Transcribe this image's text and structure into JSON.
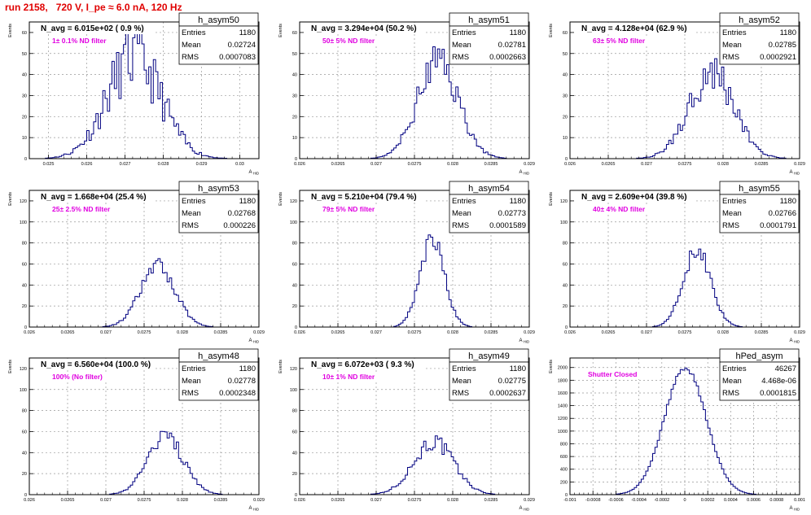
{
  "page_title": "run 2158,   720 V, I_pe ≈ 6.0 nA, 120 Hz",
  "chart_data": [
    {
      "type": "histogram",
      "name": "h_asym50",
      "nav": "N_avg = 6.015e+02 ( 0.9 %)",
      "filter": "1± 0.1% ND filter",
      "stats": [
        {
          "label": "Entries",
          "value": "1180"
        },
        {
          "label": "Mean",
          "value": "0.02724"
        },
        {
          "label": "RMS",
          "value": "0.0007083"
        }
      ],
      "ylabel": "Events",
      "xlabel": "A_HID",
      "xlim": [
        0.0245,
        0.0305
      ],
      "ylim": [
        0,
        65
      ],
      "yticks": [
        0,
        10,
        20,
        30,
        40,
        50,
        60
      ],
      "ytick_labels": [
        "0",
        "10",
        "20",
        "30",
        "40",
        "50",
        "60"
      ],
      "xticks": [
        0.025,
        0.026,
        0.027,
        0.028,
        0.029,
        0.03
      ],
      "xtick_labels": [
        "0.025",
        "0.026",
        "0.027",
        "0.028",
        "0.029",
        "0.03"
      ],
      "mean": 0.02724,
      "rms": 0.0007083,
      "peak": 48,
      "noise": 0.33,
      "seed": 11
    },
    {
      "type": "histogram",
      "name": "h_asym51",
      "nav": "N_avg = 3.294e+04 (50.2 %)",
      "filter": "50± 5% ND filter",
      "stats": [
        {
          "label": "Entries",
          "value": "1180"
        },
        {
          "label": "Mean",
          "value": "0.02781"
        },
        {
          "label": "RMS",
          "value": "0.0002663"
        }
      ],
      "ylabel": "Events",
      "xlabel": "A_HID",
      "xlim": [
        0.026,
        0.029
      ],
      "ylim": [
        0,
        65
      ],
      "yticks": [
        0,
        10,
        20,
        30,
        40,
        50,
        60
      ],
      "ytick_labels": [
        "0",
        "10",
        "20",
        "30",
        "40",
        "50",
        "60"
      ],
      "xticks": [
        0.026,
        0.0265,
        0.027,
        0.0275,
        0.028,
        0.0285,
        0.029
      ],
      "xtick_labels": [
        "0.026",
        "0.0265",
        "0.027",
        "0.0275",
        "0.028",
        "0.0285",
        "0.029"
      ],
      "mean": 0.02781,
      "rms": 0.0002663,
      "peak": 46,
      "noise": 0.22,
      "seed": 23
    },
    {
      "type": "histogram",
      "name": "h_asym52",
      "nav": "N_avg = 4.128e+04 (62.9 %)",
      "filter": "63± 5% ND filter",
      "stats": [
        {
          "label": "Entries",
          "value": "1180"
        },
        {
          "label": "Mean",
          "value": "0.02785"
        },
        {
          "label": "RMS",
          "value": "0.0002921"
        }
      ],
      "ylabel": "Events",
      "xlabel": "A_HID",
      "xlim": [
        0.026,
        0.029
      ],
      "ylim": [
        0,
        65
      ],
      "yticks": [
        0,
        10,
        20,
        30,
        40,
        50,
        60
      ],
      "ytick_labels": [
        "0",
        "10",
        "20",
        "30",
        "40",
        "50",
        "60"
      ],
      "xticks": [
        0.026,
        0.0265,
        0.027,
        0.0275,
        0.028,
        0.0285,
        0.029
      ],
      "xtick_labels": [
        "0.026",
        "0.0265",
        "0.027",
        "0.0275",
        "0.028",
        "0.0285",
        "0.029"
      ],
      "mean": 0.02785,
      "rms": 0.0002921,
      "peak": 42,
      "noise": 0.25,
      "seed": 37
    },
    {
      "type": "histogram",
      "name": "h_asym53",
      "nav": "N_avg = 1.668e+04 (25.4 %)",
      "filter": "25± 2.5% ND filter",
      "stats": [
        {
          "label": "Entries",
          "value": "1180"
        },
        {
          "label": "Mean",
          "value": "0.02768"
        },
        {
          "label": "RMS",
          "value": "0.000226"
        }
      ],
      "ylabel": "Events",
      "xlabel": "A_HID",
      "xlim": [
        0.026,
        0.029
      ],
      "ylim": [
        0,
        130
      ],
      "yticks": [
        0,
        20,
        40,
        60,
        80,
        100,
        120
      ],
      "ytick_labels": [
        "0",
        "20",
        "40",
        "60",
        "80",
        "100",
        "120"
      ],
      "xticks": [
        0.026,
        0.0265,
        0.027,
        0.0275,
        0.028,
        0.0285,
        0.029
      ],
      "xtick_labels": [
        "0.026",
        "0.0265",
        "0.027",
        "0.0275",
        "0.028",
        "0.0285",
        "0.029"
      ],
      "mean": 0.02768,
      "rms": 0.000226,
      "peak": 58,
      "noise": 0.14,
      "seed": 41
    },
    {
      "type": "histogram",
      "name": "h_asym54",
      "nav": "N_avg = 5.210e+04 (79.4 %)",
      "filter": "79± 5% ND filter",
      "stats": [
        {
          "label": "Entries",
          "value": "1180"
        },
        {
          "label": "Mean",
          "value": "0.02773"
        },
        {
          "label": "RMS",
          "value": "0.0001589"
        }
      ],
      "ylabel": "Events",
      "xlabel": "A_HID",
      "xlim": [
        0.026,
        0.029
      ],
      "ylim": [
        0,
        130
      ],
      "yticks": [
        0,
        20,
        40,
        60,
        80,
        100,
        120
      ],
      "ytick_labels": [
        "0",
        "20",
        "40",
        "60",
        "80",
        "100",
        "120"
      ],
      "xticks": [
        0.026,
        0.0265,
        0.027,
        0.0275,
        0.028,
        0.0285,
        0.029
      ],
      "xtick_labels": [
        "0.026",
        "0.0265",
        "0.027",
        "0.0275",
        "0.028",
        "0.0285",
        "0.029"
      ],
      "mean": 0.02773,
      "rms": 0.0001589,
      "peak": 84,
      "noise": 0.12,
      "seed": 53
    },
    {
      "type": "histogram",
      "name": "h_asym55",
      "nav": "N_avg = 2.609e+04 (39.8 %)",
      "filter": "40± 4% ND filter",
      "stats": [
        {
          "label": "Entries",
          "value": "1180"
        },
        {
          "label": "Mean",
          "value": "0.02766"
        },
        {
          "label": "RMS",
          "value": "0.0001791"
        }
      ],
      "ylabel": "Events",
      "xlabel": "A_HID",
      "xlim": [
        0.026,
        0.029
      ],
      "ylim": [
        0,
        130
      ],
      "yticks": [
        0,
        20,
        40,
        60,
        80,
        100,
        120
      ],
      "ytick_labels": [
        "0",
        "20",
        "40",
        "60",
        "80",
        "100",
        "120"
      ],
      "xticks": [
        0.026,
        0.0265,
        0.027,
        0.0275,
        0.028,
        0.0285,
        0.029
      ],
      "xtick_labels": [
        "0.026",
        "0.0265",
        "0.027",
        "0.0275",
        "0.028",
        "0.0285",
        "0.029"
      ],
      "mean": 0.02766,
      "rms": 0.0001791,
      "peak": 74,
      "noise": 0.11,
      "seed": 67
    },
    {
      "type": "histogram",
      "name": "h_asym48",
      "nav": "N_avg = 6.560e+04 (100.0 %)",
      "filter": "100% (No filter)",
      "stats": [
        {
          "label": "Entries",
          "value": "1180"
        },
        {
          "label": "Mean",
          "value": "0.02778"
        },
        {
          "label": "RMS",
          "value": "0.0002348"
        }
      ],
      "ylabel": "Events",
      "xlabel": "A_HID",
      "xlim": [
        0.026,
        0.029
      ],
      "ylim": [
        0,
        130
      ],
      "yticks": [
        0,
        20,
        40,
        60,
        80,
        100,
        120
      ],
      "ytick_labels": [
        "0",
        "20",
        "40",
        "60",
        "80",
        "100",
        "120"
      ],
      "xticks": [
        0.026,
        0.0265,
        0.027,
        0.0275,
        0.028,
        0.0285,
        0.029
      ],
      "xtick_labels": [
        "0.026",
        "0.0265",
        "0.027",
        "0.0275",
        "0.028",
        "0.0285",
        "0.029"
      ],
      "mean": 0.02778,
      "rms": 0.0002348,
      "peak": 55,
      "noise": 0.15,
      "seed": 79
    },
    {
      "type": "histogram",
      "name": "h_asym49",
      "nav": "N_avg = 6.072e+03 ( 9.3 %)",
      "filter": "10± 1% ND filter",
      "stats": [
        {
          "label": "Entries",
          "value": "1180"
        },
        {
          "label": "Mean",
          "value": "0.02775"
        },
        {
          "label": "RMS",
          "value": "0.0002637"
        }
      ],
      "ylabel": "Events",
      "xlabel": "A_HID",
      "xlim": [
        0.026,
        0.029
      ],
      "ylim": [
        0,
        130
      ],
      "yticks": [
        0,
        20,
        40,
        60,
        80,
        100,
        120
      ],
      "ytick_labels": [
        "0",
        "20",
        "40",
        "60",
        "80",
        "100",
        "120"
      ],
      "xticks": [
        0.026,
        0.0265,
        0.027,
        0.0275,
        0.028,
        0.0285,
        0.029
      ],
      "xtick_labels": [
        "0.026",
        "0.0265",
        "0.027",
        "0.0275",
        "0.028",
        "0.0285",
        "0.029"
      ],
      "mean": 0.02775,
      "rms": 0.0002637,
      "peak": 50,
      "noise": 0.17,
      "seed": 97
    },
    {
      "type": "histogram",
      "name": "hPed_asym",
      "nav": "",
      "filter": "Shutter Closed",
      "stats": [
        {
          "label": "Entries",
          "value": "46267"
        },
        {
          "label": "Mean",
          "value": "4.468e-06"
        },
        {
          "label": "RMS",
          "value": "0.0001815"
        }
      ],
      "ylabel": "Events",
      "xlabel": "A_HID",
      "xlim": [
        -0.001,
        0.001
      ],
      "ylim": [
        0,
        2150
      ],
      "yticks": [
        0,
        200,
        400,
        600,
        800,
        1000,
        1200,
        1400,
        1600,
        1800,
        2000
      ],
      "ytick_labels": [
        "0",
        "200",
        "400",
        "600",
        "800",
        "1000",
        "1200",
        "1400",
        "1600",
        "1800",
        "2000"
      ],
      "xticks": [
        -0.001,
        -0.0008,
        -0.0006,
        -0.0004,
        -0.0002,
        0,
        0.0002,
        0.0004,
        0.0006,
        0.0008,
        0.001
      ],
      "xtick_labels": [
        "-0.001",
        "-0.0008",
        "-0.0006",
        "-0.0004",
        "-0.0002",
        "0",
        "0.0002",
        "0.0004",
        "0.0006",
        "0.0008",
        "0.001"
      ],
      "mean": 4.468e-06,
      "rms": 0.0001815,
      "peak": 2000,
      "noise": 0.02,
      "seed": 101
    }
  ],
  "colors": {
    "hist_line": "#000080",
    "title_red": "#e00000",
    "filter_text": "#e000e0",
    "grid": "#999999"
  }
}
